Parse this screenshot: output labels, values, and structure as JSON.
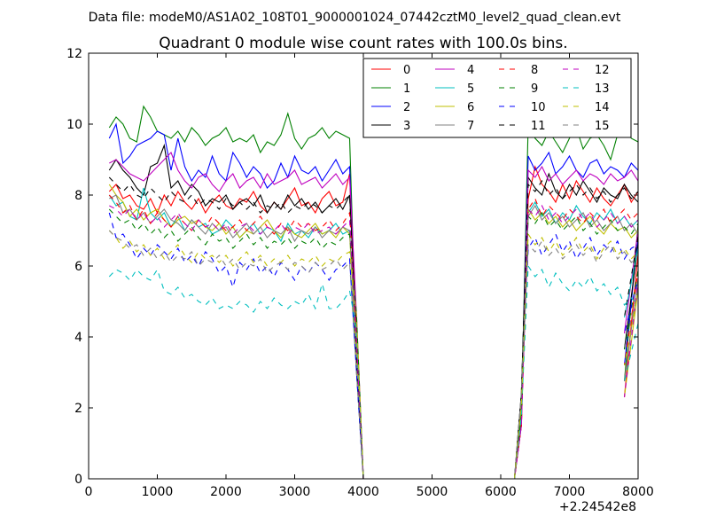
{
  "suptitle": "Data file: modeM0/AS1A02_108T01_9000001024_07442cztM0_level2_quad_clean.evt",
  "chart_data": {
    "type": "line",
    "title": "Quadrant 0 module wise count rates with 100.0s bins.",
    "xlabel": "",
    "ylabel": "",
    "x_offset_label": "+2.24542e8",
    "xlim": [
      0,
      8000
    ],
    "ylim": [
      0,
      12
    ],
    "xticks": [
      0,
      1000,
      2000,
      3000,
      4000,
      5000,
      6000,
      7000,
      8000
    ],
    "yticks": [
      0,
      2,
      4,
      6,
      8,
      10,
      12
    ],
    "grid": false,
    "legend": {
      "position": "top-right",
      "columns": 4
    },
    "series": [
      {
        "name": "0",
        "color": "#ff0000",
        "dash": "solid",
        "seg1": [
          8.1,
          8.3,
          7.9,
          8.0,
          7.7,
          7.6,
          7.9,
          7.5,
          8.0,
          7.7,
          8.1,
          7.8,
          7.6,
          7.9,
          7.5,
          7.8,
          8.0,
          7.7,
          7.6,
          7.9,
          7.8,
          8.1,
          7.7,
          7.5,
          7.8,
          7.6,
          7.9,
          8.2,
          7.7,
          7.8,
          7.5,
          7.9,
          8.1,
          7.7,
          7.8,
          8.6
        ],
        "seg2": [
          7.9,
          8.8,
          8.3,
          8.1,
          7.8,
          8.3,
          7.9,
          8.4,
          8.1,
          7.8,
          8.2,
          7.9,
          7.7,
          8.0,
          8.3,
          7.8,
          8.1,
          8.4
        ]
      },
      {
        "name": "1",
        "color": "#008000",
        "dash": "solid",
        "seg1": [
          9.9,
          10.2,
          10.0,
          9.6,
          9.5,
          10.5,
          10.2,
          9.8,
          9.7,
          9.6,
          9.8,
          9.5,
          9.9,
          9.7,
          9.4,
          9.6,
          9.7,
          9.9,
          9.5,
          9.6,
          9.5,
          9.7,
          9.2,
          9.5,
          9.4,
          9.7,
          10.3,
          9.6,
          9.3,
          9.6,
          9.7,
          9.9,
          9.6,
          9.8,
          9.7,
          9.6
        ],
        "seg2": [
          10.0,
          9.6,
          9.4,
          9.8,
          9.5,
          9.2,
          9.6,
          9.9,
          9.3,
          9.6,
          9.7,
          9.4,
          9.0,
          9.7,
          10.0,
          9.6,
          9.5,
          9.4
        ]
      },
      {
        "name": "2",
        "color": "#0000ff",
        "dash": "solid",
        "seg1": [
          9.6,
          10.0,
          8.9,
          9.1,
          9.4,
          9.5,
          9.6,
          9.8,
          9.7,
          8.7,
          9.6,
          8.8,
          8.4,
          8.7,
          8.5,
          9.1,
          8.6,
          8.4,
          9.2,
          8.9,
          8.5,
          8.8,
          8.6,
          8.2,
          8.4,
          8.9,
          8.5,
          9.1,
          8.7,
          8.6,
          8.8,
          8.4,
          8.7,
          9.0,
          8.6,
          8.8
        ],
        "seg2": [
          9.1,
          8.7,
          8.9,
          9.2,
          8.6,
          8.8,
          9.1,
          8.7,
          8.5,
          8.9,
          9.0,
          8.6,
          8.8,
          8.7,
          8.5,
          8.9,
          8.7,
          8.6
        ]
      },
      {
        "name": "3",
        "color": "#000000",
        "dash": "solid",
        "seg1": [
          8.7,
          9.0,
          8.7,
          8.5,
          8.2,
          8.0,
          8.8,
          8.9,
          9.4,
          8.2,
          8.4,
          8.0,
          8.3,
          8.1,
          7.7,
          7.9,
          7.8,
          8.0,
          7.6,
          7.8,
          7.9,
          7.7,
          8.0,
          7.5,
          7.8,
          7.6,
          8.0,
          7.7,
          7.9,
          7.6,
          7.8,
          7.5,
          7.7,
          7.9,
          7.6,
          8.0
        ],
        "seg2": [
          8.5,
          8.2,
          8.0,
          8.6,
          8.1,
          7.9,
          8.3,
          8.0,
          8.4,
          8.1,
          7.8,
          8.2,
          8.0,
          7.9,
          8.3,
          8.0,
          7.8,
          8.1
        ]
      },
      {
        "name": "4",
        "color": "#bf00bf",
        "dash": "solid",
        "seg1": [
          8.9,
          9.0,
          8.8,
          8.6,
          8.5,
          8.4,
          8.6,
          8.8,
          9.0,
          9.2,
          8.7,
          8.4,
          8.2,
          8.5,
          8.6,
          8.3,
          8.1,
          8.4,
          8.6,
          8.2,
          8.4,
          8.5,
          8.2,
          8.6,
          8.3,
          8.4,
          8.5,
          8.7,
          8.3,
          8.4,
          8.5,
          8.2,
          8.4,
          8.6,
          8.3,
          8.5
        ],
        "seg2": [
          8.7,
          8.5,
          8.8,
          8.4,
          8.6,
          8.3,
          8.5,
          8.7,
          8.4,
          8.6,
          8.5,
          8.3,
          8.6,
          8.4,
          8.5,
          8.7,
          8.4,
          8.5
        ]
      },
      {
        "name": "5",
        "color": "#00bfbf",
        "dash": "solid",
        "seg1": [
          8.0,
          7.7,
          7.8,
          7.4,
          7.3,
          8.2,
          7.5,
          7.3,
          7.5,
          7.1,
          7.4,
          7.0,
          7.3,
          7.1,
          7.2,
          6.9,
          7.0,
          7.3,
          7.1,
          6.8,
          7.0,
          7.2,
          6.9,
          7.1,
          7.0,
          6.7,
          7.2,
          6.9,
          7.0,
          6.8,
          7.1,
          6.9,
          7.0,
          7.2,
          6.9,
          7.0
        ],
        "seg2": [
          7.5,
          7.8,
          7.4,
          7.6,
          7.2,
          7.5,
          7.3,
          7.7,
          7.4,
          7.2,
          7.5,
          7.3,
          7.6,
          7.2,
          7.4,
          7.1,
          7.3,
          7.5
        ]
      },
      {
        "name": "6",
        "color": "#bfbf00",
        "dash": "solid",
        "seg1": [
          8.3,
          8.0,
          7.8,
          7.4,
          7.6,
          7.3,
          7.5,
          7.6,
          7.3,
          7.1,
          7.3,
          7.4,
          7.2,
          7.3,
          7.1,
          7.0,
          7.2,
          6.9,
          7.1,
          6.8,
          7.0,
          6.9,
          7.1,
          7.3,
          7.0,
          6.8,
          7.1,
          6.9,
          6.8,
          7.0,
          7.2,
          6.9,
          7.0,
          6.8,
          7.1,
          6.9
        ],
        "seg2": [
          7.6,
          7.3,
          7.5,
          7.2,
          7.4,
          7.1,
          7.3,
          7.0,
          7.2,
          7.4,
          7.1,
          6.9,
          7.2,
          7.0,
          7.1,
          6.8,
          7.0,
          6.9
        ]
      },
      {
        "name": "7",
        "color": "#808080",
        "dash": "solid",
        "seg1": [
          7.9,
          8.0,
          7.5,
          7.6,
          7.3,
          7.5,
          7.2,
          7.4,
          7.6,
          7.3,
          7.2,
          7.0,
          7.3,
          7.1,
          6.9,
          7.2,
          7.0,
          7.1,
          6.8,
          7.0,
          7.2,
          6.9,
          7.1,
          6.8,
          7.0,
          6.9,
          7.1,
          6.7,
          7.0,
          6.9,
          7.1,
          6.8,
          7.0,
          6.9,
          7.1,
          7.0
        ],
        "seg2": [
          7.4,
          7.7,
          7.3,
          7.5,
          7.2,
          7.4,
          7.1,
          7.3,
          7.5,
          7.1,
          7.3,
          7.0,
          7.2,
          7.4,
          7.0,
          7.2,
          6.9,
          7.1
        ]
      },
      {
        "name": "8",
        "color": "#ff0000",
        "dash": "dashed",
        "seg1": [
          8.0,
          7.8,
          7.5,
          7.7,
          7.3,
          7.6,
          7.2,
          7.5,
          7.3,
          7.1,
          7.4,
          7.2,
          7.0,
          7.3,
          7.1,
          7.4,
          7.2,
          7.0,
          7.1,
          7.3,
          7.0,
          7.2,
          7.4,
          7.1,
          6.9,
          7.2,
          7.0,
          7.3,
          7.1,
          7.2,
          7.0,
          7.1,
          7.3,
          7.0,
          7.2,
          7.5
        ],
        "seg2": [
          7.6,
          7.9,
          7.4,
          7.7,
          7.5,
          7.3,
          7.6,
          7.4,
          7.2,
          7.5,
          7.3,
          7.6,
          7.2,
          7.4,
          7.6,
          7.3,
          7.5,
          7.2
        ]
      },
      {
        "name": "9",
        "color": "#008000",
        "dash": "dashed",
        "seg1": [
          7.6,
          7.4,
          7.2,
          7.3,
          7.0,
          7.2,
          6.9,
          7.1,
          6.8,
          7.0,
          6.7,
          6.9,
          7.1,
          6.8,
          6.6,
          6.9,
          6.7,
          6.8,
          6.5,
          6.7,
          6.9,
          6.6,
          6.8,
          6.5,
          6.7,
          6.6,
          6.8,
          6.5,
          6.7,
          6.6,
          6.8,
          6.5,
          6.7,
          6.6,
          6.8,
          6.9
        ],
        "seg2": [
          7.4,
          7.2,
          7.5,
          7.1,
          7.3,
          7.0,
          7.2,
          7.4,
          7.0,
          7.2,
          6.9,
          7.1,
          7.3,
          7.0,
          7.1,
          6.9,
          7.2,
          7.0
        ]
      },
      {
        "name": "10",
        "color": "#0000ff",
        "dash": "dashed",
        "seg1": [
          7.5,
          6.8,
          6.9,
          6.6,
          6.2,
          6.5,
          6.3,
          6.6,
          6.4,
          6.2,
          6.5,
          6.1,
          6.3,
          6.0,
          6.4,
          6.2,
          5.8,
          6.0,
          5.4,
          6.1,
          5.9,
          6.2,
          5.8,
          6.0,
          5.7,
          6.1,
          5.9,
          5.6,
          6.0,
          5.8,
          6.1,
          5.9,
          5.6,
          5.9,
          6.0,
          6.2
        ],
        "seg2": [
          6.5,
          6.8,
          6.3,
          6.6,
          6.9,
          6.4,
          6.7,
          6.2,
          6.5,
          6.8,
          6.3,
          6.6,
          6.4,
          6.7,
          6.2,
          6.5,
          6.6,
          6.4
        ]
      },
      {
        "name": "11",
        "color": "#000000",
        "dash": "dashed",
        "seg1": [
          8.5,
          8.3,
          8.1,
          8.3,
          8.0,
          7.9,
          8.2,
          8.0,
          7.8,
          8.1,
          7.9,
          7.8,
          8.0,
          7.7,
          7.9,
          7.8,
          7.6,
          7.9,
          7.7,
          7.8,
          7.6,
          7.8,
          7.5,
          7.7,
          7.6,
          7.8,
          7.5,
          7.7,
          7.6,
          7.8,
          7.7,
          7.5,
          7.7,
          7.6,
          7.8,
          8.0
        ],
        "seg2": [
          8.3,
          8.1,
          8.4,
          8.0,
          8.2,
          7.9,
          8.1,
          8.3,
          8.0,
          8.2,
          7.9,
          8.1,
          7.8,
          8.0,
          8.2,
          7.9,
          8.1,
          8.0
        ]
      },
      {
        "name": "12",
        "color": "#bf00bf",
        "dash": "dashed",
        "seg1": [
          7.7,
          7.6,
          7.4,
          7.6,
          7.3,
          7.5,
          7.2,
          7.4,
          7.1,
          7.3,
          7.5,
          7.2,
          7.0,
          7.3,
          7.1,
          7.2,
          7.0,
          7.2,
          6.9,
          7.1,
          7.2,
          7.0,
          6.9,
          7.1,
          7.0,
          7.2,
          6.9,
          7.1,
          7.0,
          7.2,
          6.9,
          7.0,
          7.1,
          6.9,
          7.1,
          7.3
        ],
        "seg2": [
          7.6,
          7.4,
          7.7,
          7.3,
          7.5,
          7.2,
          7.4,
          7.6,
          7.3,
          7.5,
          7.1,
          7.3,
          7.5,
          7.2,
          7.4,
          7.1,
          7.3,
          7.2
        ]
      },
      {
        "name": "13",
        "color": "#00bfbf",
        "dash": "dashed",
        "seg1": [
          5.7,
          5.9,
          5.8,
          5.6,
          5.9,
          5.7,
          5.6,
          5.9,
          5.3,
          5.2,
          5.4,
          5.1,
          5.2,
          5.0,
          4.9,
          5.1,
          4.8,
          4.9,
          4.8,
          5.0,
          4.9,
          4.7,
          5.0,
          4.8,
          5.1,
          4.9,
          4.8,
          5.0,
          4.9,
          5.2,
          4.8,
          5.5,
          4.8,
          4.8,
          5.0,
          5.3
        ],
        "seg2": [
          6.0,
          5.7,
          5.9,
          5.4,
          5.8,
          5.5,
          5.3,
          5.6,
          5.4,
          5.7,
          5.3,
          5.5,
          5.2,
          5.4,
          4.9,
          5.1,
          4.9,
          5.2
        ]
      },
      {
        "name": "14",
        "color": "#bfbf00",
        "dash": "dashed",
        "seg1": [
          7.0,
          6.8,
          6.5,
          6.7,
          6.4,
          6.6,
          6.3,
          6.5,
          6.2,
          6.4,
          6.6,
          6.3,
          6.1,
          6.4,
          6.2,
          6.3,
          6.1,
          6.3,
          6.0,
          6.2,
          6.4,
          6.1,
          6.3,
          6.0,
          6.2,
          6.1,
          6.3,
          6.0,
          6.2,
          6.1,
          6.3,
          6.0,
          6.2,
          6.1,
          6.3,
          6.4
        ],
        "seg2": [
          6.9,
          6.6,
          6.8,
          6.4,
          6.7,
          6.3,
          6.5,
          6.8,
          6.4,
          6.6,
          6.2,
          6.5,
          6.7,
          6.3,
          6.5,
          6.2,
          6.4,
          6.3
        ]
      },
      {
        "name": "15",
        "color": "#808080",
        "dash": "dashed",
        "seg1": [
          7.0,
          6.8,
          6.7,
          6.5,
          6.6,
          6.3,
          6.5,
          6.2,
          6.4,
          6.1,
          6.3,
          6.2,
          6.4,
          6.0,
          6.2,
          6.1,
          6.3,
          6.0,
          6.2,
          5.9,
          6.1,
          6.0,
          6.2,
          5.8,
          6.0,
          6.1,
          5.9,
          6.1,
          6.0,
          5.8,
          6.1,
          5.9,
          6.0,
          6.2,
          5.9,
          6.1
        ],
        "seg2": [
          6.6,
          6.4,
          6.7,
          6.3,
          6.5,
          6.2,
          6.4,
          6.6,
          6.3,
          6.5,
          6.1,
          6.4,
          6.6,
          6.2,
          6.4,
          6.1,
          6.3,
          6.2
        ]
      }
    ]
  }
}
